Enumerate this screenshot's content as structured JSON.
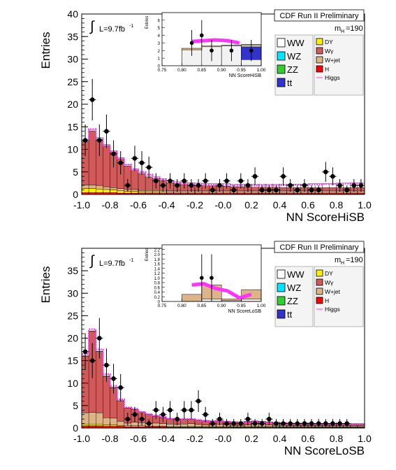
{
  "chart_data": [
    {
      "type": "bar",
      "title": "CDF Run II Preliminary",
      "xlabel": "NN ScoreHiSB",
      "ylabel": "Entries",
      "xlim": [
        -1.0,
        1.0
      ],
      "ylim": [
        0,
        40
      ],
      "xticks": [
        "-1.0",
        "-0.8",
        "-0.6",
        "-0.4",
        "-0.2",
        "-0.0",
        "0.2",
        "0.4",
        "0.6",
        "0.8",
        "1.0"
      ],
      "yticks": [
        "0",
        "5",
        "10",
        "15",
        "20",
        "25",
        "30",
        "35",
        "40"
      ],
      "lumi_label": "L=9.7fb",
      "lumi_sup": "-1",
      "mass_label": "m",
      "mass_sub": "H",
      "mass_value": "=190",
      "legend": [
        "WW",
        "WZ",
        "ZZ",
        "tt",
        "DY",
        "Wγ",
        "W+jet",
        "H",
        "Higgs"
      ],
      "bin_edges_start": -1.0,
      "bin_width": 0.05,
      "stack": {
        "H": [
          0.4,
          0.4,
          0.4,
          0.4,
          0.4,
          0.3,
          0.3,
          0.3,
          0.3,
          0.3,
          0.3,
          0.3,
          0.3,
          0.3,
          0.3,
          0.3,
          0.3,
          0.3,
          0.3,
          0.3,
          0.3,
          0.3,
          0.3,
          0.3,
          0.3,
          0.3,
          0.3,
          0.3,
          0.3,
          0.3,
          0.3,
          0.3,
          0.3,
          0.3,
          0.3,
          0.3,
          0.3,
          0.3,
          0.3,
          0.3
        ],
        "DY": [
          0.9,
          0.9,
          0.8,
          0.7,
          0.6,
          0.5,
          0.4,
          0.4,
          0.3,
          0.3,
          0.3,
          0.3,
          0.2,
          0.2,
          0.2,
          0.2,
          0.2,
          0.2,
          0.2,
          0.2,
          0.2,
          0.2,
          0.2,
          0.2,
          0.2,
          0.2,
          0.2,
          0.2,
          0.2,
          0.2,
          0.2,
          0.2,
          0.2,
          0.2,
          0.2,
          0.2,
          0.2,
          0.2,
          0.2,
          0.2
        ],
        "Wjet": [
          0.8,
          0.8,
          0.8,
          0.6,
          0.5,
          0.5,
          0.4,
          0.4,
          0.3,
          0.3,
          0.3,
          0.3,
          0.3,
          0.3,
          0.3,
          0.3,
          0.3,
          0.3,
          0.3,
          0.3,
          0.3,
          0.3,
          0.3,
          0.3,
          0.3,
          0.3,
          0.3,
          0.3,
          0.3,
          0.3,
          0.3,
          0.3,
          0.3,
          0.3,
          0.3,
          0.3,
          0.3,
          0.3,
          0.3,
          0.3
        ],
        "Wg": [
          9.6,
          12.0,
          10.3,
          9.1,
          7.9,
          6.6,
          5.2,
          4.2,
          3.7,
          3.0,
          2.6,
          2.2,
          1.8,
          1.6,
          1.4,
          1.3,
          1.2,
          1.1,
          1.1,
          1.0,
          1.0,
          0.9,
          0.9,
          0.9,
          0.8,
          0.8,
          0.8,
          0.8,
          0.7,
          0.7,
          0.7,
          0.7,
          0.7,
          0.7,
          0.7,
          0.7,
          0.7,
          0.7,
          0.7,
          0.7
        ],
        "WW": [
          0.3,
          0.3,
          0.3,
          0.3,
          0.3,
          0.3,
          0.3,
          0.3,
          0.3,
          0.4,
          0.4,
          0.4,
          0.4,
          0.4,
          0.5,
          0.5,
          0.5,
          0.5,
          0.5,
          0.6,
          0.6,
          0.6,
          0.6,
          0.6,
          0.7,
          0.7,
          0.7,
          0.7,
          0.8,
          0.8,
          0.8,
          0.8,
          0.9,
          0.9,
          0.9,
          0.9,
          1.0,
          1.0,
          1.0,
          1.0
        ]
      },
      "signal": [
        12.0,
        14.5,
        12.3,
        10.8,
        9.4,
        8.0,
        6.6,
        5.6,
        5.0,
        4.4,
        3.8,
        3.4,
        3.0,
        2.7,
        2.5,
        2.4,
        2.3,
        2.2,
        2.2,
        2.1,
        2.1,
        2.0,
        2.0,
        2.0,
        2.0,
        2.0,
        2.0,
        2.0,
        2.0,
        2.1,
        2.1,
        2.1,
        2.2,
        2.2,
        2.3,
        2.3,
        2.4,
        2.4,
        2.5,
        2.5
      ],
      "data_points": [
        {
          "x": -0.975,
          "y": 12,
          "e": 3.5
        },
        {
          "x": -0.925,
          "y": 21,
          "e": 4.6
        },
        {
          "x": -0.875,
          "y": 12,
          "e": 3.5
        },
        {
          "x": -0.825,
          "y": 14,
          "e": 3.7
        },
        {
          "x": -0.775,
          "y": 9,
          "e": 3.0
        },
        {
          "x": -0.725,
          "y": 7,
          "e": 2.6
        },
        {
          "x": -0.675,
          "y": 2,
          "e": 1.4
        },
        {
          "x": -0.625,
          "y": 8,
          "e": 2.8
        },
        {
          "x": -0.575,
          "y": 7,
          "e": 2.6
        },
        {
          "x": -0.525,
          "y": 6,
          "e": 2.4
        },
        {
          "x": -0.475,
          "y": 3,
          "e": 1.7
        },
        {
          "x": -0.425,
          "y": 2,
          "e": 1.4
        },
        {
          "x": -0.375,
          "y": 3,
          "e": 1.7
        },
        {
          "x": -0.325,
          "y": 2,
          "e": 1.4
        },
        {
          "x": -0.275,
          "y": 3,
          "e": 1.7
        },
        {
          "x": -0.225,
          "y": 2,
          "e": 1.4
        },
        {
          "x": -0.175,
          "y": 2,
          "e": 1.4
        },
        {
          "x": -0.125,
          "y": 3,
          "e": 1.7
        },
        {
          "x": -0.075,
          "y": 1,
          "e": 1.0
        },
        {
          "x": -0.025,
          "y": 2,
          "e": 1.4
        },
        {
          "x": 0.025,
          "y": 3,
          "e": 1.7
        },
        {
          "x": 0.075,
          "y": 1,
          "e": 1.0
        },
        {
          "x": 0.125,
          "y": 3,
          "e": 1.7
        },
        {
          "x": 0.175,
          "y": 2,
          "e": 1.4
        },
        {
          "x": 0.225,
          "y": 4,
          "e": 2.0
        },
        {
          "x": 0.275,
          "y": 1,
          "e": 1.0
        },
        {
          "x": 0.325,
          "y": 1,
          "e": 1.0
        },
        {
          "x": 0.375,
          "y": 1,
          "e": 1.0
        },
        {
          "x": 0.425,
          "y": 4,
          "e": 2.0
        },
        {
          "x": 0.475,
          "y": 2,
          "e": 1.4
        },
        {
          "x": 0.525,
          "y": 1,
          "e": 1.0
        },
        {
          "x": 0.575,
          "y": 2,
          "e": 1.4
        },
        {
          "x": 0.625,
          "y": 1,
          "e": 1.0
        },
        {
          "x": 0.675,
          "y": 1,
          "e": 1.0
        },
        {
          "x": 0.725,
          "y": 5,
          "e": 2.2
        },
        {
          "x": 0.775,
          "y": 4,
          "e": 2.0
        },
        {
          "x": 0.825,
          "y": 2,
          "e": 1.4
        },
        {
          "x": 0.875,
          "y": 1,
          "e": 1.0
        },
        {
          "x": 0.925,
          "y": 2,
          "e": 1.4
        },
        {
          "x": 0.975,
          "y": 2,
          "e": 1.4
        }
      ],
      "inset": {
        "xlabel": "NN ScoreHiSB",
        "ylabel": "Entries",
        "xlim": [
          0.75,
          1.0
        ],
        "ylim": [
          0,
          7
        ],
        "xticks": [
          "0.75",
          "0.80",
          "0.85",
          "0.90",
          "0.95",
          "1.00"
        ],
        "yticks": [
          "0",
          "1",
          "2",
          "3",
          "4",
          "5",
          "6"
        ],
        "bin_edges": [
          0.8,
          0.85,
          0.9,
          0.95,
          1.0
        ],
        "bg_total": [
          2.3,
          2.6,
          2.7,
          2.8
        ],
        "bg_green": [
          2.1,
          2.5,
          2.6,
          2.7
        ],
        "bg_blue": [
          0,
          0,
          0,
          1.7
        ],
        "signal_from": 0.825,
        "signal": [
          3.2,
          3.3,
          3.4,
          3.3,
          3.0
        ],
        "data_points": [
          {
            "x": 0.825,
            "y": 3,
            "e": 1.7
          },
          {
            "x": 0.85,
            "y": 4,
            "e": 2.0
          },
          {
            "x": 0.875,
            "y": 2,
            "e": 1.4
          },
          {
            "x": 0.925,
            "y": 2,
            "e": 1.4
          },
          {
            "x": 0.975,
            "y": 2,
            "e": 1.4
          }
        ]
      }
    },
    {
      "type": "bar",
      "title": "CDF Run II Preliminary",
      "xlabel": "NN ScoreLoSB",
      "ylabel": "Entries",
      "xlim": [
        -1.0,
        1.0
      ],
      "ylim": [
        0,
        40
      ],
      "xticks": [
        "-1.0",
        "-0.8",
        "-0.6",
        "-0.4",
        "-0.2",
        "-0.0",
        "0.2",
        "0.4",
        "0.6",
        "0.8",
        "1.0"
      ],
      "yticks": [
        "0",
        "5",
        "10",
        "15",
        "20",
        "25",
        "30",
        "35"
      ],
      "lumi_label": "L=9.7fb",
      "lumi_sup": "-1",
      "mass_label": "m",
      "mass_sub": "H",
      "mass_value": "=190",
      "legend": [
        "WW",
        "WZ",
        "ZZ",
        "tt",
        "DY",
        "Wγ",
        "W+jet",
        "H",
        "Higgs"
      ],
      "bin_edges_start": -1.0,
      "bin_width": 0.05,
      "stack": {
        "H": [
          0.5,
          0.5,
          0.5,
          0.4,
          0.4,
          0.4,
          0.3,
          0.3,
          0.3,
          0.3,
          0.3,
          0.3,
          0.2,
          0.2,
          0.2,
          0.2,
          0.2,
          0.2,
          0.2,
          0.2,
          0.2,
          0.2,
          0.2,
          0.2,
          0.2,
          0.2,
          0.2,
          0.2,
          0.2,
          0.2,
          0.2,
          0.2,
          0.2,
          0.2,
          0.2,
          0.2,
          0.2,
          0.2,
          0.2,
          0.2
        ],
        "DY": [
          0.4,
          0.4,
          0.4,
          0.3,
          0.3,
          0.2,
          0.2,
          0.2,
          0.2,
          0.1,
          0.1,
          0.1,
          0.1,
          0.1,
          0.1,
          0.1,
          0.1,
          0.1,
          0.1,
          0.1,
          0.1,
          0.1,
          0.1,
          0.1,
          0.1,
          0.1,
          0.1,
          0.1,
          0.1,
          0.1,
          0.1,
          0.1,
          0.1,
          0.1,
          0.1,
          0.1,
          0.1,
          0.1,
          0.1,
          0.1
        ],
        "Wg": [
          12.6,
          18.0,
          13.6,
          9.2,
          6.8,
          4.5,
          3.3,
          2.8,
          2.3,
          2.0,
          1.5,
          1.3,
          1.1,
          1.0,
          1.0,
          0.9,
          0.9,
          0.9,
          0.8,
          0.8,
          0.7,
          0.7,
          0.7,
          0.7,
          0.6,
          0.6,
          0.6,
          0.6,
          0.5,
          0.5,
          0.5,
          0.5,
          0.4,
          0.4,
          0.4,
          0.4,
          0.4,
          0.4,
          0.4,
          0.4
        ],
        "Wjet": [
          2.5,
          2.6,
          2.5,
          1.6,
          1.5,
          0.9,
          0.6,
          0.8,
          0.7,
          0.6,
          0.7,
          0.6,
          0.6,
          0.5,
          0.6,
          0.7,
          0.5,
          0.4,
          0.4,
          0.5,
          0.4,
          0.3,
          0.3,
          0.4,
          0.6,
          0.5,
          0.4,
          0.3,
          0.3,
          0.2,
          0.2,
          0.2,
          0.2,
          0.2,
          0.2,
          0.2,
          0.2,
          0.2,
          0.2,
          0.2
        ],
        "WW": [
          0.1,
          0.1,
          0.1,
          0.1,
          0.1,
          0.1,
          0.1,
          0.1,
          0.1,
          0.1,
          0.1,
          0.1,
          0.1,
          0.1,
          0.1,
          0.1,
          0.1,
          0.1,
          0.1,
          0.1,
          0.1,
          0.1,
          0.1,
          0.1,
          0.1,
          0.1,
          0.1,
          0.1,
          0.1,
          0.1,
          0.1,
          0.1,
          0.1,
          0.1,
          0.1,
          0.1,
          0.1,
          0.1,
          0.1,
          0.1
        ]
      },
      "signal": [
        16.5,
        22.0,
        17.5,
        12.0,
        9.4,
        6.4,
        4.6,
        4.3,
        3.6,
        3.1,
        2.8,
        2.5,
        2.1,
        1.9,
        2.0,
        2.0,
        1.8,
        1.6,
        1.5,
        1.6,
        1.4,
        1.2,
        1.2,
        1.3,
        1.4,
        1.3,
        1.2,
        1.1,
        1.0,
        0.9,
        0.9,
        0.9,
        0.8,
        0.8,
        0.8,
        0.8,
        0.8,
        0.8,
        0.8,
        0.8
      ],
      "data_points": [
        {
          "x": -0.975,
          "y": 17,
          "e": 4.1
        },
        {
          "x": -0.925,
          "y": 15,
          "e": 3.9
        },
        {
          "x": -0.875,
          "y": 20,
          "e": 4.5
        },
        {
          "x": -0.825,
          "y": 14,
          "e": 3.7
        },
        {
          "x": -0.775,
          "y": 11,
          "e": 3.3
        },
        {
          "x": -0.725,
          "y": 9,
          "e": 3.0
        },
        {
          "x": -0.675,
          "y": 2,
          "e": 1.4
        },
        {
          "x": -0.625,
          "y": 3,
          "e": 1.7
        },
        {
          "x": -0.575,
          "y": 2,
          "e": 1.4
        },
        {
          "x": -0.525,
          "y": 1,
          "e": 1.0
        },
        {
          "x": -0.475,
          "y": 4,
          "e": 2.0
        },
        {
          "x": -0.425,
          "y": 3,
          "e": 1.7
        },
        {
          "x": -0.375,
          "y": 4,
          "e": 2.0
        },
        {
          "x": -0.325,
          "y": 2,
          "e": 1.4
        },
        {
          "x": -0.275,
          "y": 4,
          "e": 2.0
        },
        {
          "x": -0.225,
          "y": 4,
          "e": 2.0
        },
        {
          "x": -0.175,
          "y": 6,
          "e": 2.4
        },
        {
          "x": -0.125,
          "y": 3,
          "e": 1.7
        },
        {
          "x": -0.075,
          "y": 1,
          "e": 1.0
        },
        {
          "x": -0.025,
          "y": 2,
          "e": 1.4
        },
        {
          "x": 0.025,
          "y": 1,
          "e": 1.0
        },
        {
          "x": 0.075,
          "y": 1,
          "e": 1.0
        },
        {
          "x": 0.125,
          "y": 1,
          "e": 1.0
        },
        {
          "x": 0.175,
          "y": 2,
          "e": 1.4
        },
        {
          "x": 0.225,
          "y": 1,
          "e": 1.0
        },
        {
          "x": 0.275,
          "y": 1,
          "e": 1.0
        },
        {
          "x": 0.325,
          "y": 2,
          "e": 1.4
        },
        {
          "x": 0.375,
          "y": 1,
          "e": 1.0
        },
        {
          "x": 0.425,
          "y": 1,
          "e": 1.0
        },
        {
          "x": 0.475,
          "y": 1,
          "e": 1.0
        },
        {
          "x": 0.525,
          "y": 1,
          "e": 1.0
        },
        {
          "x": 0.575,
          "y": 1,
          "e": 1.0
        },
        {
          "x": 0.625,
          "y": 1,
          "e": 1.0
        },
        {
          "x": 0.675,
          "y": 1,
          "e": 1.0
        },
        {
          "x": 0.725,
          "y": 1,
          "e": 1.0
        },
        {
          "x": 0.775,
          "y": 1,
          "e": 1.0
        },
        {
          "x": 0.825,
          "y": 1,
          "e": 1.0
        },
        {
          "x": 0.875,
          "y": 1,
          "e": 1.0
        },
        {
          "x": 0.925,
          "y": 0,
          "e": 0
        },
        {
          "x": 0.975,
          "y": 0,
          "e": 0
        }
      ],
      "inset": {
        "xlabel": "NN ScoreLoSB",
        "ylabel": "Entries",
        "xlim": [
          0.75,
          1.0
        ],
        "ylim": [
          0,
          2.4
        ],
        "xticks": [
          "0.75",
          "0.80",
          "0.85",
          "0.90",
          "0.95",
          "1.00"
        ],
        "yticks": [
          "0",
          "0.2",
          "0.4",
          "0.6",
          "0.8",
          "1.0",
          "1.2",
          "1.4",
          "1.6",
          "1.8",
          "2.0",
          "2.2"
        ],
        "bin_edges": [
          0.8,
          0.85,
          0.9,
          0.95,
          1.0
        ],
        "bg_total": [
          0.3,
          0.7,
          0.1,
          0.5
        ],
        "bg_green": [
          0,
          0.1,
          0.05,
          0.1
        ],
        "bg_blue": [
          0,
          0,
          0,
          0
        ],
        "signal_from": 0.825,
        "signal": [
          0.7,
          0.75,
          0.55,
          0.45,
          0.15,
          0.3
        ],
        "data_points": [
          {
            "x": 0.825,
            "y": 0,
            "e": 0
          },
          {
            "x": 0.85,
            "y": 1,
            "e": 1.0
          },
          {
            "x": 0.875,
            "y": 1,
            "e": 1.0
          }
        ]
      }
    }
  ],
  "colors": {
    "WW": "#ffffff",
    "WZ": "#00e5ff",
    "ZZ": "#33cc33",
    "tt": "#3333cc",
    "DY": "#ffee00",
    "Wg": "#d05a5a",
    "Wjet": "#ddb48a",
    "H": "#ff0000",
    "Higgs": "#ff33ff",
    "frame_bg": "#f4f4f4"
  }
}
